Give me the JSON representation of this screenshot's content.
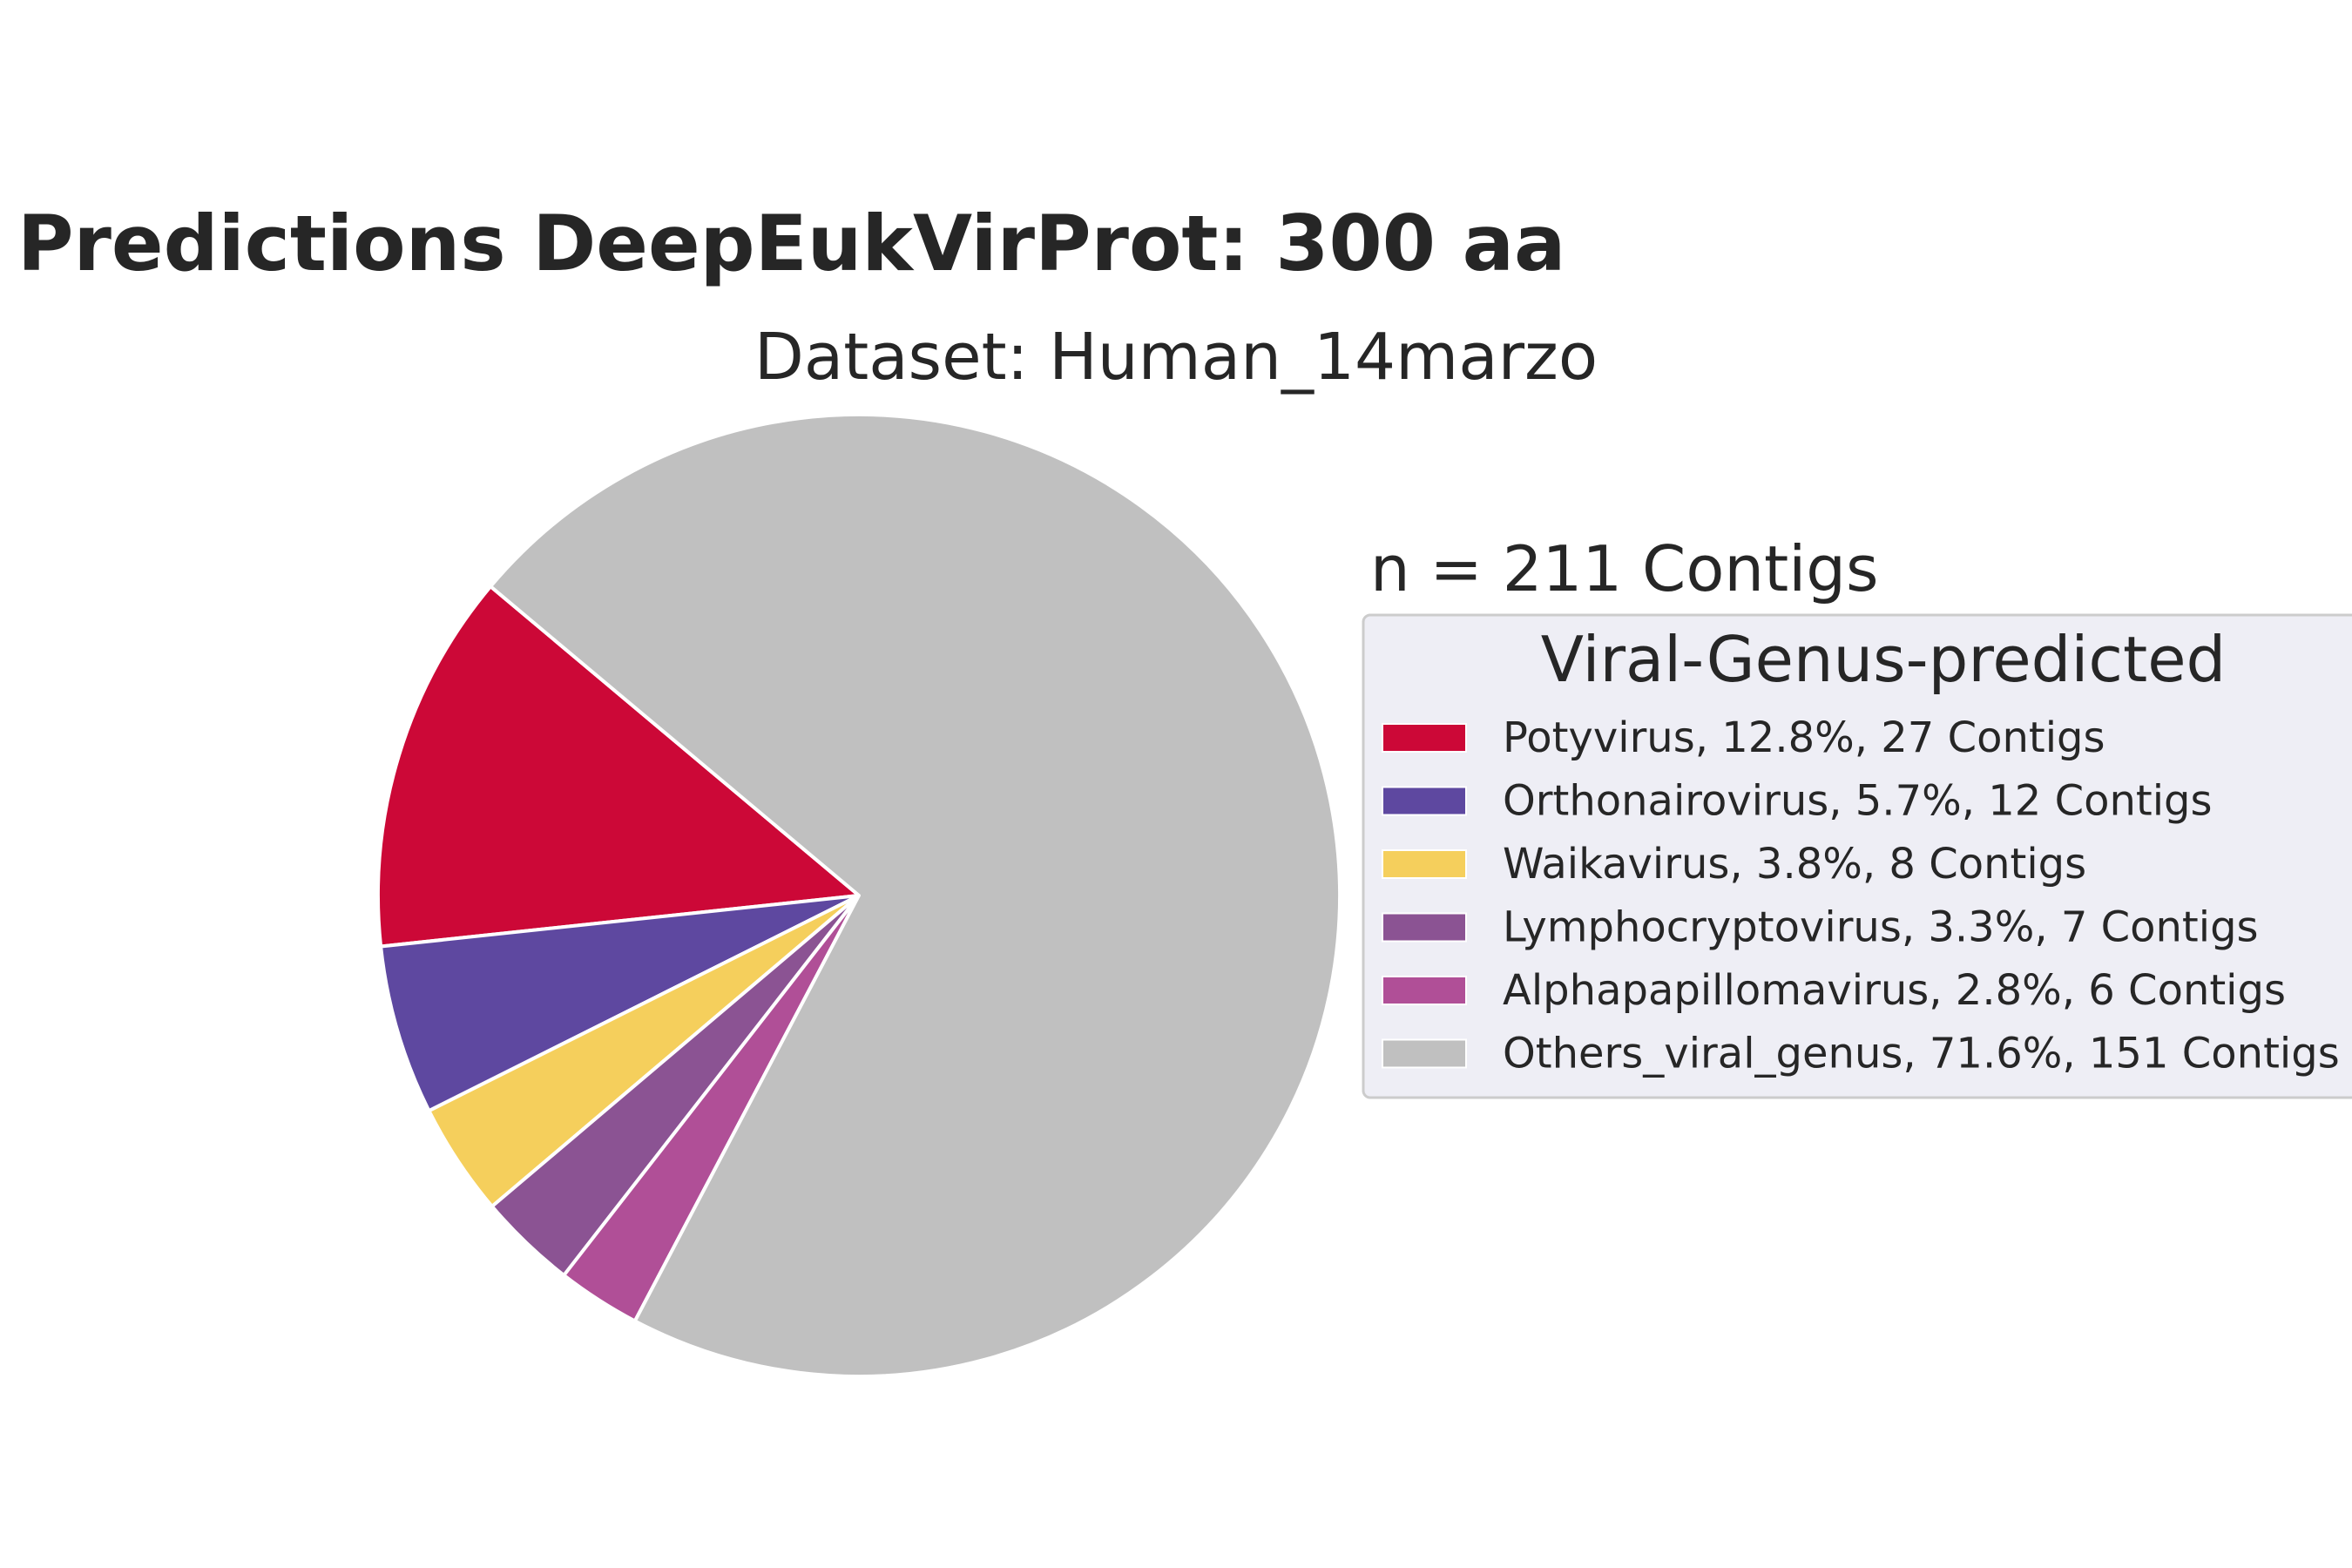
{
  "chart_data": {
    "type": "pie",
    "title": "Predictions DeepEukVirProt: 300 aa",
    "subtitle": "Dataset: Human_14marzo",
    "total_label": "n = 211 Contigs",
    "legend": {
      "title": "Viral-Genus-predicted",
      "placement": "right"
    },
    "slices": [
      {
        "name": "Potyvirus",
        "percent": 12.8,
        "contigs": 27,
        "label": "Potyvirus, 12.8%, 27 Contigs",
        "color": "#cc0837"
      },
      {
        "name": "Orthonairovirus",
        "percent": 5.7,
        "contigs": 12,
        "label": "Orthonairovirus, 5.7%, 12 Contigs",
        "color": "#5e48a0"
      },
      {
        "name": "Waikavirus",
        "percent": 3.8,
        "contigs": 8,
        "label": "Waikavirus, 3.8%, 8 Contigs",
        "color": "#f5cf5c"
      },
      {
        "name": "Lymphocryptovirus",
        "percent": 3.3,
        "contigs": 7,
        "label": "Lymphocryptovirus, 3.3%, 7 Contigs",
        "color": "#8b5393"
      },
      {
        "name": "Alphapapillomavirus",
        "percent": 2.8,
        "contigs": 6,
        "label": "Alphapapillomavirus, 2.8%, 6 Contigs",
        "color": "#b04f97"
      },
      {
        "name": "Others_viral_genus",
        "percent": 71.6,
        "contigs": 151,
        "label": "Others_viral_genus, 71.6%, 151 Contigs",
        "color": "#c0c0c0"
      }
    ],
    "start_angle_deg": 140,
    "direction": "counterclockwise"
  }
}
